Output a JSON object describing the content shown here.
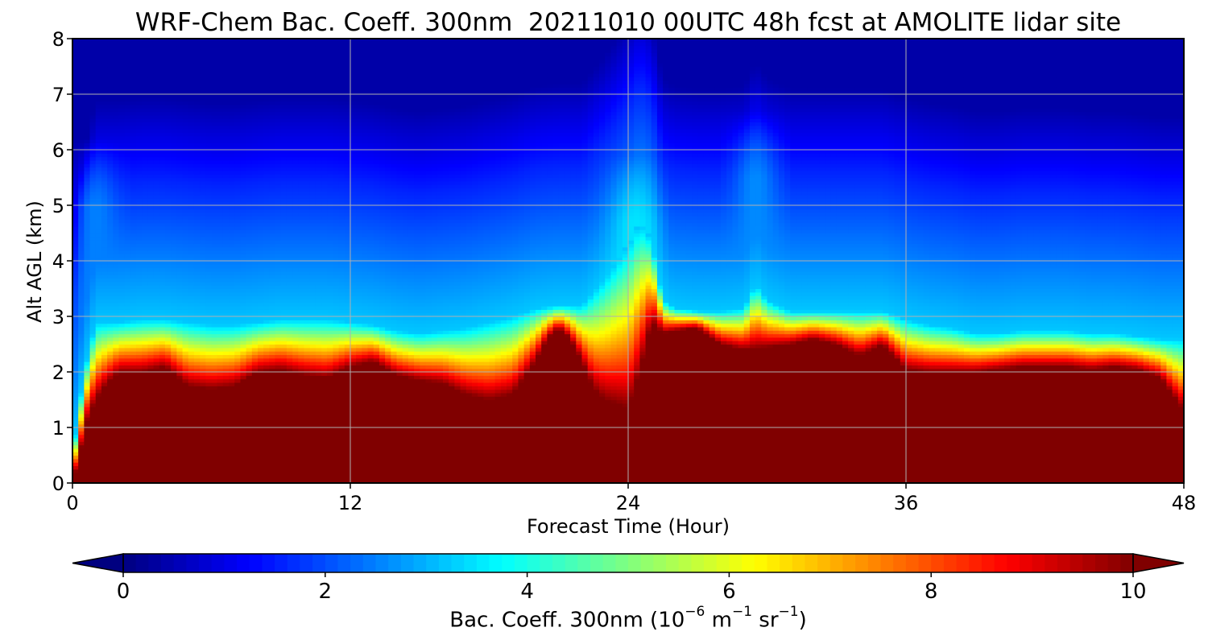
{
  "chart_data": {
    "type": "heatmap",
    "title": "WRF-Chem Bac. Coeff. 300nm  20211010 00UTC 48h fcst at AMOLITE lidar site",
    "xlabel": "Forecast Time (Hour)",
    "ylabel": "Alt AGL (km)",
    "xlim": [
      0,
      48
    ],
    "ylim": [
      0,
      8
    ],
    "xticks": [
      0,
      12,
      24,
      36,
      48
    ],
    "yticks": [
      0,
      1,
      2,
      3,
      4,
      5,
      6,
      7,
      8
    ],
    "grid": true,
    "colormap": "jet",
    "colorbar": {
      "label_prefix": "Bac. Coeff. 300nm  (10",
      "label_exp1": "−6",
      "label_mid": " m",
      "label_exp2": "−1",
      "label_mid2": " sr",
      "label_exp3": "−1",
      "label_suffix": ")",
      "range": [
        0,
        10
      ],
      "ticks": [
        0,
        2,
        4,
        6,
        8,
        10
      ],
      "extend": "both"
    },
    "saturated_layer_top_km": {
      "hours": [
        0,
        0.3,
        0.6,
        1,
        1.5,
        2,
        3,
        4,
        5,
        6,
        7,
        8,
        9,
        10,
        11,
        12,
        13,
        14,
        15,
        16,
        17,
        18,
        19,
        20,
        20.5,
        21,
        21.5,
        22,
        22.5,
        23,
        24,
        24.5,
        25,
        25.5,
        26,
        27,
        28,
        29,
        30,
        31,
        32,
        33,
        34,
        35,
        36,
        37,
        38,
        39,
        40,
        41,
        42,
        43,
        44,
        45,
        46,
        47,
        48
      ],
      "values": [
        0,
        0.5,
        1.1,
        1.5,
        1.8,
        2.0,
        2.0,
        2.1,
        1.75,
        1.7,
        1.75,
        2.0,
        2.05,
        1.95,
        1.9,
        2.1,
        2.2,
        1.95,
        1.85,
        1.8,
        1.6,
        1.5,
        1.6,
        2.2,
        2.6,
        2.8,
        2.6,
        2.2,
        1.7,
        1.5,
        1.35,
        2.0,
        2.9,
        2.7,
        2.75,
        2.8,
        2.5,
        2.4,
        2.45,
        2.5,
        2.6,
        2.5,
        2.3,
        2.5,
        2.05,
        2.0,
        2.0,
        2.0,
        2.05,
        2.1,
        2.1,
        2.1,
        2.05,
        2.1,
        2.05,
        1.9,
        1.3
      ]
    },
    "aerosol_layer_top_km": {
      "hours": [
        0,
        0.5,
        1,
        2,
        3,
        4,
        5,
        6,
        7,
        8,
        9,
        10,
        11,
        12,
        13,
        14,
        15,
        16,
        17,
        18,
        19,
        20,
        21,
        22,
        23,
        24,
        24.5,
        25,
        25.5,
        26,
        27,
        28,
        29,
        29.5,
        30,
        31,
        32,
        33,
        34,
        35,
        36,
        37,
        38,
        39,
        40,
        41,
        42,
        43,
        44,
        45,
        46,
        47,
        48
      ],
      "values": [
        0.5,
        2.0,
        2.9,
        2.9,
        2.95,
        2.95,
        2.9,
        2.85,
        2.85,
        2.9,
        2.95,
        2.95,
        2.95,
        2.9,
        2.85,
        2.75,
        2.7,
        2.75,
        2.8,
        2.9,
        3.0,
        3.15,
        3.2,
        3.2,
        3.7,
        4.3,
        4.7,
        4.4,
        3.3,
        3.15,
        3.1,
        3.1,
        3.15,
        3.6,
        3.3,
        3.1,
        3.1,
        3.1,
        3.1,
        3.1,
        2.95,
        2.85,
        2.8,
        2.7,
        2.7,
        2.75,
        2.75,
        2.75,
        2.7,
        2.7,
        2.65,
        2.6,
        2.6
      ]
    },
    "plumes": [
      {
        "hour": 1.0,
        "top_km": 5.0,
        "value": 2.5
      },
      {
        "hour": 24.3,
        "top_km": 4.7,
        "value": 3.5
      },
      {
        "hour": 29.5,
        "top_km": 5.5,
        "value": 2.6
      }
    ],
    "background_upper_value": 0.4,
    "background_mid_value": 1.6
  }
}
